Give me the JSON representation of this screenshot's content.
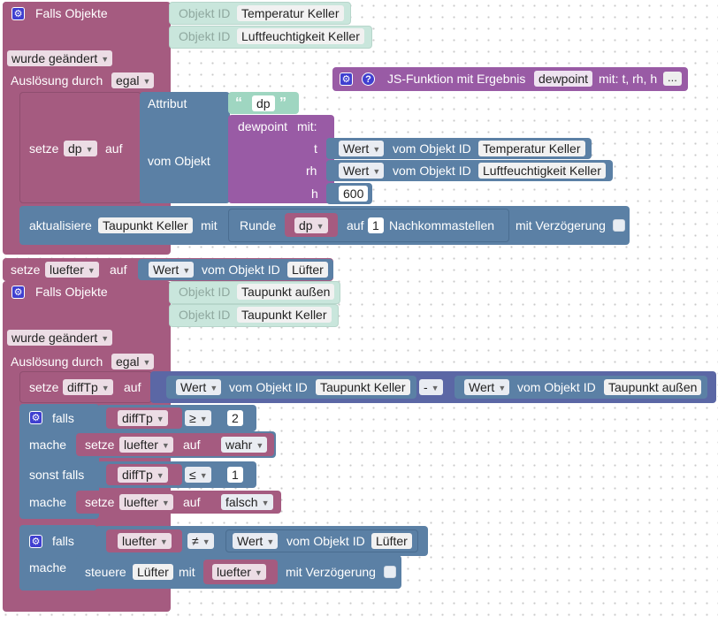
{
  "event1": {
    "title": "Falls Objekte",
    "objekt_id_label": "Objekt ID",
    "objects": [
      "Temperatur Keller",
      "Luftfeuchtigkeit Keller"
    ],
    "changed": "wurde geändert",
    "trigger_label": "Auslösung durch",
    "trigger_value": "egal"
  },
  "setdp": {
    "label_set": "setze",
    "var": "dp",
    "label_auf": "auf",
    "attr_label": "Attribut",
    "attr_value": "dp",
    "from_obj": "vom Objekt",
    "func_name": "dewpoint",
    "func_mit": "mit:",
    "param_t": "t",
    "param_rh": "rh",
    "param_h": "h",
    "wert": "Wert",
    "vom_objekt_id": "vom Objekt ID",
    "t_object": "Temperatur Keller",
    "rh_object": "Luftfeuchtigkeit Keller",
    "h_value": "600"
  },
  "update": {
    "label": "aktualisiere",
    "target": "Taupunkt Keller",
    "mit": "mit",
    "runde": "Runde",
    "var": "dp",
    "auf": "auf",
    "digits": "1",
    "nachkomma": "Nachkommastellen",
    "delay": "mit Verzögerung"
  },
  "jsfunc": {
    "label": "JS-Funktion mit Ergebnis",
    "name": "dewpoint",
    "params": "mit: t, rh, h",
    "more": "..."
  },
  "setluefter": {
    "label": "setze",
    "var": "luefter",
    "auf": "auf",
    "wert": "Wert",
    "vom_objekt_id": "vom Objekt ID",
    "object": "Lüfter"
  },
  "event2": {
    "title": "Falls Objekte",
    "objekt_id_label": "Objekt ID",
    "objects": [
      "Taupunkt außen",
      "Taupunkt Keller"
    ],
    "changed": "wurde geändert",
    "trigger_label": "Auslösung durch",
    "trigger_value": "egal"
  },
  "setdiff": {
    "label": "setze",
    "var": "diffTp",
    "auf": "auf",
    "wert": "Wert",
    "vom_objekt_id": "vom Objekt ID",
    "obj1": "Taupunkt Keller",
    "op": "-",
    "obj2": "Taupunkt außen"
  },
  "if1": {
    "falls": "falls",
    "var": "diffTp",
    "op1": "≥",
    "val1": "2",
    "mache": "mache",
    "setze": "setze",
    "luefter": "luefter",
    "auf": "auf",
    "wahr": "wahr",
    "sonst_falls": "sonst falls",
    "op2": "≤",
    "val2": "1",
    "falsch": "falsch"
  },
  "if2": {
    "falls": "falls",
    "var": "luefter",
    "op": "≠",
    "wert": "Wert",
    "vom_objekt_id": "vom Objekt ID",
    "object": "Lüfter",
    "mache": "mache",
    "steuere": "steuere",
    "target": "Lüfter",
    "mit": "mit",
    "delay": "mit Verzögerung"
  },
  "colors": {
    "event": "#a55b80",
    "logic": "#5b80a5",
    "function": "#995ba5",
    "selector": "#c9e6dc",
    "icon": "#3f3fd0"
  },
  "icons": [
    "gear-icon",
    "question-icon",
    "dropdown-arrow-icon",
    "checkbox-icon"
  ]
}
